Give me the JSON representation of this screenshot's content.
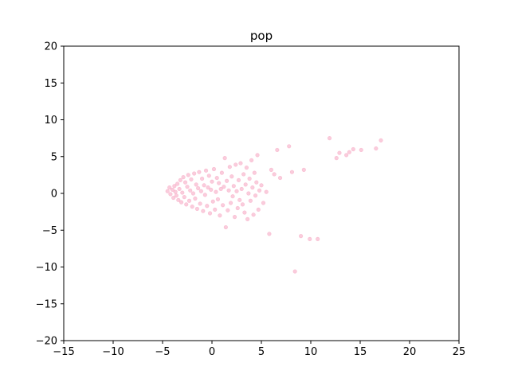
{
  "chart_data": {
    "type": "scatter",
    "title": "pop",
    "xlabel": "",
    "ylabel": "",
    "xlim": [
      -15,
      25
    ],
    "ylim": [
      -20,
      20
    ],
    "xticks": [
      -15,
      -10,
      -5,
      0,
      5,
      10,
      15,
      20,
      25
    ],
    "yticks": [
      -20,
      -15,
      -10,
      -5,
      0,
      5,
      10,
      15,
      20
    ],
    "grid": false,
    "legend": "none",
    "series": [
      {
        "color": "#f48fb1",
        "alpha": 0.45,
        "points": [
          [
            -4.5,
            0.3
          ],
          [
            -4.3,
            0.8
          ],
          [
            -4.2,
            -0.1
          ],
          [
            -4.0,
            0.5
          ],
          [
            -3.9,
            -0.6
          ],
          [
            -3.8,
            1.0
          ],
          [
            -3.7,
            0.2
          ],
          [
            -3.6,
            -0.3
          ],
          [
            -3.5,
            1.3
          ],
          [
            -3.4,
            -0.9
          ],
          [
            -3.3,
            0.6
          ],
          [
            -3.2,
            1.8
          ],
          [
            -3.1,
            -1.2
          ],
          [
            -3.0,
            0.1
          ],
          [
            -2.9,
            2.2
          ],
          [
            -2.8,
            -0.5
          ],
          [
            -2.7,
            1.5
          ],
          [
            -2.6,
            -1.5
          ],
          [
            -2.5,
            0.9
          ],
          [
            -2.4,
            2.5
          ],
          [
            -2.3,
            -1.0
          ],
          [
            -2.2,
            0.4
          ],
          [
            -2.1,
            1.9
          ],
          [
            -2.0,
            -1.8
          ],
          [
            -1.9,
            0.0
          ],
          [
            -1.8,
            2.7
          ],
          [
            -1.7,
            -0.7
          ],
          [
            -1.6,
            1.2
          ],
          [
            -1.5,
            -2.1
          ],
          [
            -1.4,
            0.7
          ],
          [
            -1.3,
            2.9
          ],
          [
            -1.2,
            -1.4
          ],
          [
            -1.1,
            0.3
          ],
          [
            -1.0,
            2.0
          ],
          [
            -0.9,
            -2.4
          ],
          [
            -0.8,
            1.1
          ],
          [
            -0.7,
            -0.2
          ],
          [
            -0.6,
            3.1
          ],
          [
            -0.5,
            -1.7
          ],
          [
            -0.4,
            0.8
          ],
          [
            -0.3,
            2.4
          ],
          [
            -0.2,
            -2.7
          ],
          [
            -0.1,
            0.5
          ],
          [
            0.0,
            1.6
          ],
          [
            0.1,
            -1.1
          ],
          [
            0.2,
            3.3
          ],
          [
            0.3,
            -2.2
          ],
          [
            0.4,
            0.2
          ],
          [
            0.5,
            2.1
          ],
          [
            0.6,
            -0.8
          ],
          [
            0.7,
            1.4
          ],
          [
            0.8,
            -3.0
          ],
          [
            0.9,
            0.6
          ],
          [
            1.0,
            2.8
          ],
          [
            1.1,
            -1.6
          ],
          [
            1.2,
            0.9
          ],
          [
            1.3,
            4.8
          ],
          [
            1.4,
            -4.6
          ],
          [
            1.5,
            1.7
          ],
          [
            1.6,
            -2.3
          ],
          [
            1.7,
            0.4
          ],
          [
            1.8,
            3.6
          ],
          [
            1.9,
            -1.3
          ],
          [
            2.0,
            2.3
          ],
          [
            2.1,
            -0.4
          ],
          [
            2.2,
            1.0
          ],
          [
            2.3,
            -3.2
          ],
          [
            2.4,
            3.9
          ],
          [
            2.5,
            0.3
          ],
          [
            2.6,
            -2.0
          ],
          [
            2.7,
            1.8
          ],
          [
            2.8,
            -0.9
          ],
          [
            2.9,
            4.1
          ],
          [
            3.0,
            0.6
          ],
          [
            3.1,
            -1.5
          ],
          [
            3.2,
            2.6
          ],
          [
            3.3,
            -2.6
          ],
          [
            3.4,
            1.2
          ],
          [
            3.5,
            3.5
          ],
          [
            3.6,
            -3.5
          ],
          [
            3.7,
            0.0
          ],
          [
            3.8,
            2.0
          ],
          [
            3.9,
            -1.0
          ],
          [
            4.0,
            4.5
          ],
          [
            4.1,
            0.8
          ],
          [
            4.2,
            -2.9
          ],
          [
            4.3,
            2.8
          ],
          [
            4.4,
            -0.3
          ],
          [
            4.5,
            1.5
          ],
          [
            4.6,
            5.2
          ],
          [
            4.7,
            -2.2
          ],
          [
            4.8,
            0.4
          ],
          [
            5.0,
            1.1
          ],
          [
            5.2,
            -1.3
          ],
          [
            5.5,
            0.2
          ],
          [
            5.8,
            -5.5
          ],
          [
            6.0,
            3.2
          ],
          [
            6.3,
            2.6
          ],
          [
            6.6,
            5.9
          ],
          [
            6.9,
            2.1
          ],
          [
            7.8,
            6.4
          ],
          [
            8.1,
            2.9
          ],
          [
            8.4,
            -10.6
          ],
          [
            9.0,
            -5.8
          ],
          [
            9.3,
            3.2
          ],
          [
            9.9,
            -6.2
          ],
          [
            10.7,
            -6.2
          ],
          [
            11.9,
            7.5
          ],
          [
            12.6,
            4.8
          ],
          [
            12.9,
            5.5
          ],
          [
            13.6,
            5.2
          ],
          [
            13.9,
            5.6
          ],
          [
            14.3,
            6.0
          ],
          [
            15.1,
            5.9
          ],
          [
            16.6,
            6.1
          ],
          [
            17.1,
            7.2
          ]
        ]
      }
    ]
  }
}
